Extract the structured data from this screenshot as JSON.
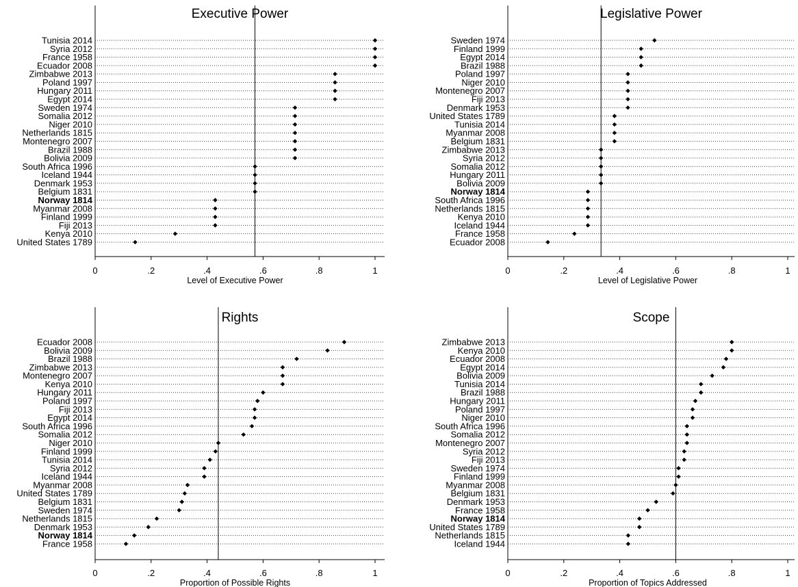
{
  "chart_data": [
    {
      "type": "scatter",
      "title": "Executive Power",
      "xlabel": "Level of Executive Power",
      "xlim": [
        0,
        1
      ],
      "xticks": [
        "0",
        ".2",
        ".4",
        ".6",
        ".8",
        "1"
      ],
      "reference_line": 0.571,
      "highlight": "Norway 1814",
      "points": [
        {
          "label": "Tunisia 2014",
          "value": 1.0
        },
        {
          "label": "Syria 2012",
          "value": 1.0
        },
        {
          "label": "France 1958",
          "value": 1.0
        },
        {
          "label": "Ecuador 2008",
          "value": 1.0
        },
        {
          "label": "Zimbabwe 2013",
          "value": 0.857
        },
        {
          "label": "Poland 1997",
          "value": 0.857
        },
        {
          "label": "Hungary 2011",
          "value": 0.857
        },
        {
          "label": "Egypt 2014",
          "value": 0.857
        },
        {
          "label": "Sweden 1974",
          "value": 0.714
        },
        {
          "label": "Somalia 2012",
          "value": 0.714
        },
        {
          "label": "Niger 2010",
          "value": 0.714
        },
        {
          "label": "Netherlands 1815",
          "value": 0.714
        },
        {
          "label": "Montenegro 2007",
          "value": 0.714
        },
        {
          "label": "Brazil 1988",
          "value": 0.714
        },
        {
          "label": "Bolivia 2009",
          "value": 0.714
        },
        {
          "label": "South Africa 1996",
          "value": 0.571
        },
        {
          "label": "Iceland 1944",
          "value": 0.571
        },
        {
          "label": "Denmark 1953",
          "value": 0.571
        },
        {
          "label": "Belgium 1831",
          "value": 0.571
        },
        {
          "label": "Norway 1814",
          "value": 0.429
        },
        {
          "label": "Myanmar 2008",
          "value": 0.429
        },
        {
          "label": "Finland 1999",
          "value": 0.429
        },
        {
          "label": "Fiji 2013",
          "value": 0.429
        },
        {
          "label": "Kenya 2010",
          "value": 0.286
        },
        {
          "label": "United States 1789",
          "value": 0.143
        }
      ]
    },
    {
      "type": "scatter",
      "title": "Legislative Power",
      "xlabel": "Level of Legislative Power",
      "xlim": [
        0,
        1
      ],
      "xticks": [
        "0",
        ".2",
        ".4",
        ".6",
        ".8",
        "1"
      ],
      "reference_line": 0.333,
      "highlight": "Norway 1814",
      "points": [
        {
          "label": "Sweden 1974",
          "value": 0.524
        },
        {
          "label": "Finland 1999",
          "value": 0.476
        },
        {
          "label": "Egypt 2014",
          "value": 0.476
        },
        {
          "label": "Brazil 1988",
          "value": 0.476
        },
        {
          "label": "Poland 1997",
          "value": 0.429
        },
        {
          "label": "Niger 2010",
          "value": 0.429
        },
        {
          "label": "Montenegro 2007",
          "value": 0.429
        },
        {
          "label": "Fiji 2013",
          "value": 0.429
        },
        {
          "label": "Denmark 1953",
          "value": 0.429
        },
        {
          "label": "United States 1789",
          "value": 0.381
        },
        {
          "label": "Tunisia 2014",
          "value": 0.381
        },
        {
          "label": "Myanmar 2008",
          "value": 0.381
        },
        {
          "label": "Belgium 1831",
          "value": 0.381
        },
        {
          "label": "Zimbabwe 2013",
          "value": 0.333
        },
        {
          "label": "Syria 2012",
          "value": 0.333
        },
        {
          "label": "Somalia 2012",
          "value": 0.333
        },
        {
          "label": "Hungary 2011",
          "value": 0.333
        },
        {
          "label": "Bolivia 2009",
          "value": 0.333
        },
        {
          "label": "Norway 1814",
          "value": 0.286
        },
        {
          "label": "South Africa 1996",
          "value": 0.286
        },
        {
          "label": "Netherlands 1815",
          "value": 0.286
        },
        {
          "label": "Kenya 2010",
          "value": 0.286
        },
        {
          "label": "Iceland 1944",
          "value": 0.286
        },
        {
          "label": "France 1958",
          "value": 0.238
        },
        {
          "label": "Ecuador 2008",
          "value": 0.143
        }
      ]
    },
    {
      "type": "scatter",
      "title": "Rights",
      "xlabel": "Proportion of Possible Rights",
      "xlim": [
        0,
        1
      ],
      "xticks": [
        "0",
        ".2",
        ".4",
        ".6",
        ".8",
        "1"
      ],
      "reference_line": 0.44,
      "highlight": "Norway 1814",
      "points": [
        {
          "label": "Ecuador 2008",
          "value": 0.89
        },
        {
          "label": "Bolivia 2009",
          "value": 0.83
        },
        {
          "label": "Brazil 1988",
          "value": 0.72
        },
        {
          "label": "Zimbabwe 2013",
          "value": 0.67
        },
        {
          "label": "Montenegro 2007",
          "value": 0.67
        },
        {
          "label": "Kenya 2010",
          "value": 0.67
        },
        {
          "label": "Hungary 2011",
          "value": 0.6
        },
        {
          "label": "Poland 1997",
          "value": 0.58
        },
        {
          "label": "Fiji 2013",
          "value": 0.57
        },
        {
          "label": "Egypt 2014",
          "value": 0.57
        },
        {
          "label": "South Africa 1996",
          "value": 0.56
        },
        {
          "label": "Somalia 2012",
          "value": 0.53
        },
        {
          "label": "Niger 2010",
          "value": 0.44
        },
        {
          "label": "Finland 1999",
          "value": 0.43
        },
        {
          "label": "Tunisia 2014",
          "value": 0.41
        },
        {
          "label": "Syria 2012",
          "value": 0.39
        },
        {
          "label": "Iceland 1944",
          "value": 0.39
        },
        {
          "label": "Myanmar 2008",
          "value": 0.33
        },
        {
          "label": "United States 1789",
          "value": 0.32
        },
        {
          "label": "Belgium 1831",
          "value": 0.31
        },
        {
          "label": "Sweden 1974",
          "value": 0.3
        },
        {
          "label": "Netherlands 1815",
          "value": 0.22
        },
        {
          "label": "Denmark 1953",
          "value": 0.19
        },
        {
          "label": "Norway 1814",
          "value": 0.14
        },
        {
          "label": "France 1958",
          "value": 0.11
        }
      ]
    },
    {
      "type": "scatter",
      "title": "Scope",
      "xlabel": "Proportion of Topics Addressed",
      "xlim": [
        0,
        1
      ],
      "xticks": [
        "0",
        ".2",
        ".4",
        ".6",
        ".8",
        "1"
      ],
      "reference_line": 0.6,
      "highlight": "Norway 1814",
      "points": [
        {
          "label": "Zimbabwe 2013",
          "value": 0.8
        },
        {
          "label": "Kenya 2010",
          "value": 0.8
        },
        {
          "label": "Ecuador 2008",
          "value": 0.78
        },
        {
          "label": "Egypt 2014",
          "value": 0.77
        },
        {
          "label": "Bolivia 2009",
          "value": 0.73
        },
        {
          "label": "Tunisia 2014",
          "value": 0.69
        },
        {
          "label": "Brazil 1988",
          "value": 0.69
        },
        {
          "label": "Hungary 2011",
          "value": 0.67
        },
        {
          "label": "Poland 1997",
          "value": 0.66
        },
        {
          "label": "Niger 2010",
          "value": 0.66
        },
        {
          "label": "South Africa 1996",
          "value": 0.64
        },
        {
          "label": "Somalia 2012",
          "value": 0.64
        },
        {
          "label": "Montenegro 2007",
          "value": 0.64
        },
        {
          "label": "Syria 2012",
          "value": 0.63
        },
        {
          "label": "Fiji 2013",
          "value": 0.63
        },
        {
          "label": "Sweden 1974",
          "value": 0.61
        },
        {
          "label": "Finland 1999",
          "value": 0.61
        },
        {
          "label": "Myanmar 2008",
          "value": 0.6
        },
        {
          "label": "Belgium 1831",
          "value": 0.59
        },
        {
          "label": "Denmark 1953",
          "value": 0.53
        },
        {
          "label": "France 1958",
          "value": 0.5
        },
        {
          "label": "Norway 1814",
          "value": 0.47
        },
        {
          "label": "United States 1789",
          "value": 0.47
        },
        {
          "label": "Netherlands 1815",
          "value": 0.43
        },
        {
          "label": "Iceland 1944",
          "value": 0.43
        }
      ]
    }
  ]
}
